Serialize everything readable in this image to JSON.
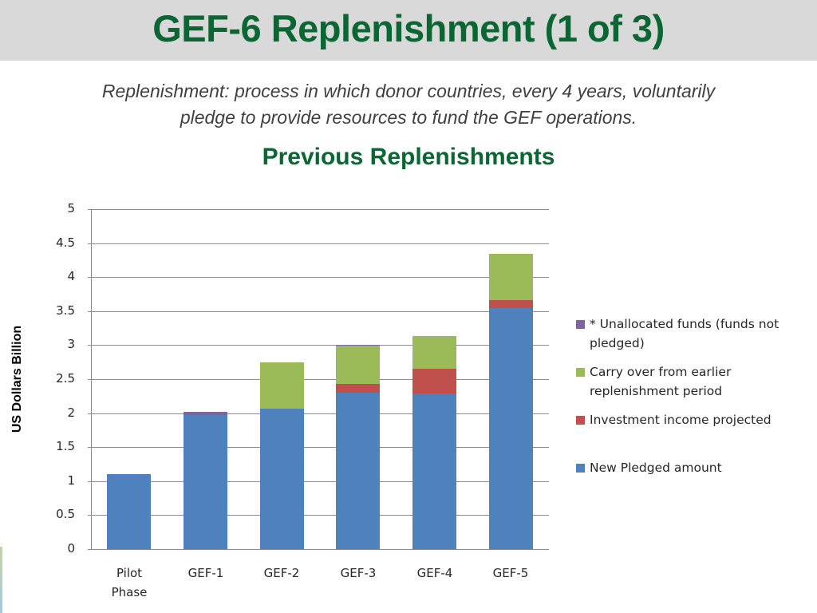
{
  "header": {
    "title": "GEF-6 Replenishment (1 of 3)"
  },
  "definition": {
    "line1": "Replenishment: process in which donor countries, every 4 years, voluntarily",
    "line2": "pledge to provide resources to fund the GEF operations."
  },
  "section_title": "Previous Replenishments",
  "colors": {
    "title_green": "#0a6632",
    "title_bar_bg": "#d9d9d9",
    "new_pledged": "#4f81bd",
    "investment_income": "#c0504d",
    "carry_over": "#9bbb59",
    "unallocated": "#8064a2"
  },
  "chart_data": {
    "type": "bar",
    "stacked": true,
    "title": "Previous Replenishments",
    "xlabel": "",
    "ylabel": "US Dollars Billion",
    "ylim": [
      0,
      5
    ],
    "yticks": [
      "0",
      "0.5",
      "1",
      "1.5",
      "2",
      "2.5",
      "3",
      "3.5",
      "4",
      "4.5",
      "5"
    ],
    "grid": true,
    "legend_position": "right",
    "categories": [
      "Pilot Phase",
      "GEF-1",
      "GEF-2",
      "GEF-3",
      "GEF-4",
      "GEF-5"
    ],
    "category_lines": [
      [
        "Pilot",
        "Phase"
      ],
      [
        "GEF-1"
      ],
      [
        "GEF-2"
      ],
      [
        "GEF-3"
      ],
      [
        "GEF-4"
      ],
      [
        "GEF-5"
      ]
    ],
    "series": [
      {
        "name": "New Pledged amount",
        "color": "#4f81bd",
        "values": [
          1.1,
          1.97,
          2.06,
          2.3,
          2.29,
          3.54
        ]
      },
      {
        "name": "Investment income projected",
        "color": "#c0504d",
        "values": [
          0,
          0,
          0,
          0.13,
          0.36,
          0.12
        ]
      },
      {
        "name": "Carry over from earlier replenishment period",
        "color": "#9bbb59",
        "values": [
          0,
          0,
          0.69,
          0.56,
          0.48,
          0.68
        ]
      },
      {
        "name": "* Unallocated funds (funds not pledged)",
        "color": "#8064a2",
        "values": [
          0,
          0.05,
          0,
          0.01,
          0,
          0
        ]
      }
    ],
    "totals": [
      1.1,
      2.02,
      2.75,
      3.0,
      3.13,
      4.34
    ]
  },
  "legend": {
    "items": [
      {
        "lines": [
          "* Unallocated funds (funds not",
          "pledged)"
        ],
        "color": "#8064a2"
      },
      {
        "lines": [
          "Carry over from earlier",
          "replenishment period"
        ],
        "color": "#9bbb59"
      },
      {
        "lines": [
          "Investment income projected"
        ],
        "color": "#c0504d"
      },
      {
        "lines": [
          "New Pledged amount"
        ],
        "color": "#4f81bd"
      }
    ]
  }
}
